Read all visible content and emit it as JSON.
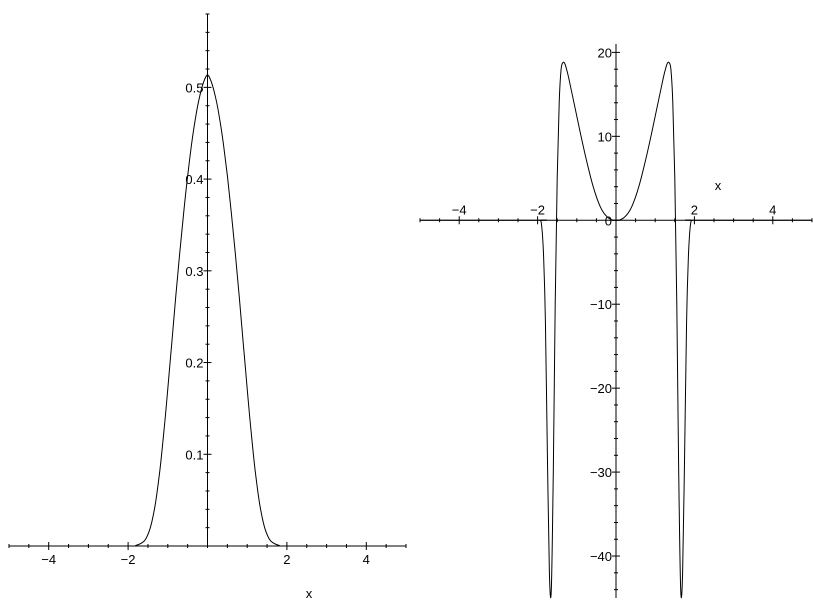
{
  "chart_data": [
    {
      "type": "line",
      "title": "",
      "xlabel": "x",
      "ylabel": "",
      "xlim": [
        -5,
        5
      ],
      "ylim": [
        0,
        0.58
      ],
      "x_ticks": [
        -4,
        -2,
        2,
        4
      ],
      "y_ticks": [
        0.1,
        0.2,
        0.3,
        0.4,
        0.5
      ],
      "x_tick_labels": [
        "−4",
        "−2",
        "2",
        "4"
      ],
      "y_tick_labels": [
        "0.1",
        "0.2",
        "0.3",
        "0.4",
        "0.5"
      ],
      "grid": false,
      "series": [
        {
          "x": [
            -5,
            -2,
            -1.8,
            -1.6,
            -1.5,
            -1.4,
            -1.3,
            -1.2,
            -1.1,
            -1.0,
            -0.9,
            -0.8,
            -0.7,
            -0.6,
            -0.5,
            -0.4,
            -0.3,
            -0.2,
            -0.1,
            0,
            0.1,
            0.2,
            0.3,
            0.4,
            0.5,
            0.6,
            0.7,
            0.8,
            0.9,
            1.0,
            1.1,
            1.2,
            1.3,
            1.4,
            1.5,
            1.6,
            1.8,
            2,
            5
          ],
          "y": [
            0,
            0,
            0.0007,
            0.0052,
            0.0125,
            0.0266,
            0.0497,
            0.0826,
            0.124,
            0.1714,
            0.2214,
            0.2713,
            0.3191,
            0.3635,
            0.4036,
            0.4384,
            0.4673,
            0.4898,
            0.5054,
            0.5135,
            0.5054,
            0.4898,
            0.4673,
            0.4384,
            0.4036,
            0.3635,
            0.3191,
            0.2713,
            0.2214,
            0.1714,
            0.124,
            0.0826,
            0.0497,
            0.0266,
            0.0125,
            0.0052,
            0.0007,
            0,
            0
          ]
        }
      ]
    },
    {
      "type": "line",
      "title": "",
      "xlabel": "x",
      "ylabel": "",
      "xlim": [
        -5,
        5
      ],
      "ylim": [
        -45,
        21
      ],
      "x_ticks": [
        -4,
        -2,
        2,
        4
      ],
      "y_ticks": [
        20,
        10,
        0,
        -10,
        -20,
        -30,
        -40
      ],
      "x_tick_labels": [
        "−4",
        "−2",
        "2",
        "4"
      ],
      "y_tick_labels": [
        "20",
        "10",
        "0",
        "−10",
        "−20",
        "−30",
        "−40"
      ],
      "grid": false,
      "series": [
        {
          "x": [
            -5,
            -2.0,
            -1.95,
            -1.9,
            -1.85,
            -1.8,
            -1.75,
            -1.7,
            -1.65,
            -1.6,
            -1.55,
            -1.5,
            -1.45,
            -1.4,
            -1.35,
            -1.3,
            -1.25,
            -1.2,
            -1.1,
            -1.0,
            -0.9,
            -0.8,
            -0.7,
            -0.6,
            -0.5,
            -0.4,
            -0.3,
            -0.2,
            -0.1,
            0,
            0.1,
            0.2,
            0.3,
            0.4,
            0.5,
            0.6,
            0.7,
            0.8,
            0.9,
            1.0,
            1.1,
            1.2,
            1.25,
            1.3,
            1.35,
            1.4,
            1.45,
            1.5,
            1.55,
            1.6,
            1.65,
            1.7,
            1.75,
            1.8,
            1.85,
            1.9,
            1.95,
            2.0,
            5
          ],
          "y": [
            0,
            0,
            0,
            -0.5,
            -4,
            -12,
            -28,
            -42,
            -44,
            -30,
            -10,
            5,
            14,
            18,
            18.8,
            18.6,
            17.8,
            16.8,
            14.6,
            12.4,
            10.2,
            8.1,
            6.1,
            4.3,
            2.8,
            1.6,
            0.8,
            0.3,
            0.05,
            0,
            0.05,
            0.3,
            0.8,
            1.6,
            2.8,
            4.3,
            6.1,
            8.1,
            10.2,
            12.4,
            14.6,
            16.8,
            17.8,
            18.6,
            18.8,
            18,
            14,
            5,
            -10,
            -30,
            -44,
            -42,
            -28,
            -12,
            -4,
            -0.5,
            0,
            0,
            0
          ]
        }
      ]
    }
  ]
}
